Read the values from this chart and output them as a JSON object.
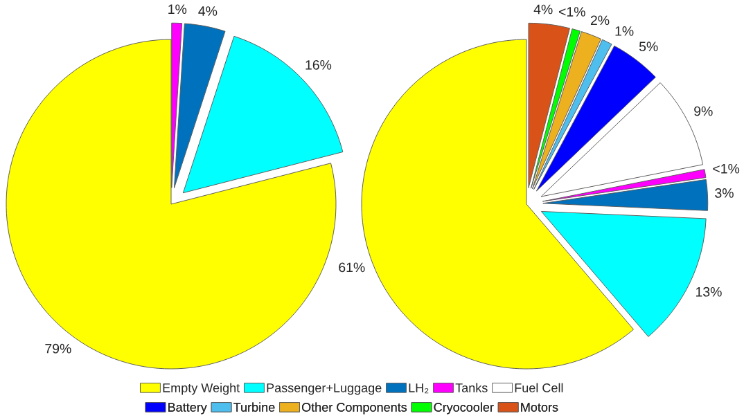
{
  "chart_data": [
    {
      "type": "pie",
      "categories": [
        null,
        null,
        null,
        null
      ],
      "values": [
        79,
        16,
        4,
        1
      ],
      "colors": [
        "#ffff00",
        "#00ffff",
        "#0072bd",
        "#ff00ff"
      ],
      "value_labels": [
        "79%",
        "16%",
        "4%",
        "1%"
      ]
    },
    {
      "type": "pie",
      "categories": [
        "Empty Weight",
        "Passenger+Luggage",
        "LH₂",
        "Tanks",
        "Fuel Cell",
        "Battery",
        "Turbine",
        "Other Components",
        "Cryocooler",
        "Motors"
      ],
      "values": [
        61,
        13,
        3,
        0.8,
        9,
        5,
        1,
        2,
        0.8,
        4
      ],
      "colors": [
        "#ffff00",
        "#00ffff",
        "#0072bd",
        "#ff00ff",
        "#ffffff",
        "#0000ff",
        "#4dbeee",
        "#edb120",
        "#00ff00",
        "#d95319"
      ],
      "value_labels": [
        "61%",
        "13%",
        "3%",
        "<1%",
        "9%",
        "5%",
        "1%",
        "2%",
        "<1%",
        "4%"
      ],
      "legend": "bottom"
    }
  ]
}
